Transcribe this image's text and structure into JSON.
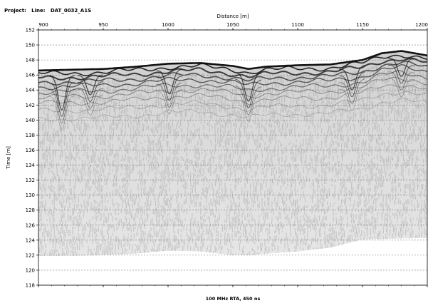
{
  "header": {
    "project_label": "Project:",
    "line_label": "Line:",
    "line_value": "DAT_0032_A1S"
  },
  "chart_data": {
    "type": "radargram",
    "xlabel": "Distance [m]",
    "ylabel": "Time [m]",
    "caption": "100 MHz RTA, 450 ns",
    "xlim": [
      900,
      1200
    ],
    "ylim": [
      118,
      152
    ],
    "x_ticks": [
      900,
      950,
      1000,
      1050,
      1100,
      1150,
      1200
    ],
    "y_ticks": [
      118,
      120,
      122,
      124,
      126,
      128,
      130,
      132,
      134,
      136,
      138,
      140,
      142,
      144,
      146,
      148,
      150,
      152
    ],
    "grid": "horizontal dashed",
    "colors": {
      "reflection": "#111111",
      "background": "#ffffff",
      "grid": "#777777"
    },
    "surface_elevation": {
      "x": [
        900,
        925,
        950,
        975,
        1000,
        1025,
        1050,
        1062,
        1075,
        1100,
        1125,
        1150,
        1165,
        1180,
        1200
      ],
      "y": [
        146.6,
        146.7,
        146.8,
        147.1,
        147.5,
        147.6,
        147.2,
        146.8,
        147.1,
        147.3,
        147.4,
        148.0,
        148.9,
        149.2,
        148.6
      ]
    },
    "depth_limit": {
      "x": [
        900,
        925,
        950,
        975,
        1000,
        1025,
        1050,
        1062,
        1075,
        1100,
        1125,
        1150,
        1175,
        1200
      ],
      "y": [
        121.9,
        121.9,
        122.0,
        122.2,
        122.6,
        122.5,
        122.0,
        122.0,
        122.2,
        122.5,
        123.0,
        124.1,
        124.2,
        124.3
      ]
    }
  }
}
